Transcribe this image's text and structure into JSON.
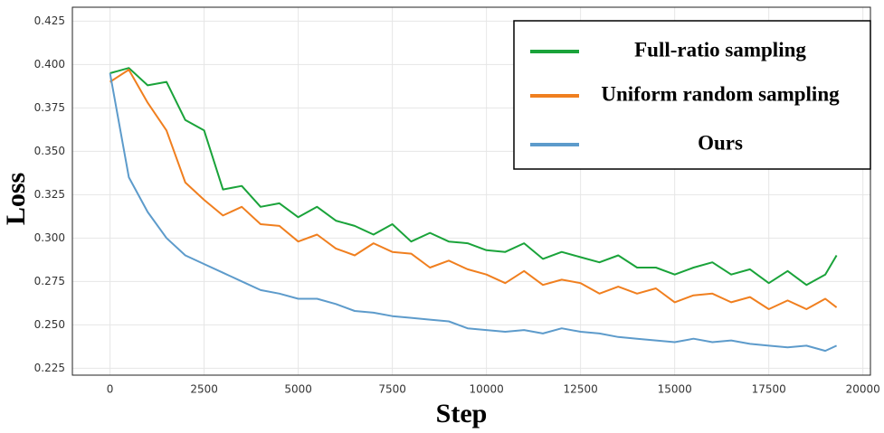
{
  "chart_data": {
    "type": "line",
    "x_label": "Step",
    "y_label": "Loss",
    "x": [
      0,
      500,
      1000,
      1500,
      2000,
      2500,
      3000,
      3500,
      4000,
      4500,
      5000,
      5500,
      6000,
      6500,
      7000,
      7500,
      8000,
      8500,
      9000,
      9500,
      10000,
      10500,
      11000,
      11500,
      12000,
      12500,
      13000,
      13500,
      14000,
      14500,
      15000,
      15500,
      16000,
      16500,
      17000,
      17500,
      18000,
      18500,
      19000,
      19300
    ],
    "series": [
      {
        "name": "Full-ratio sampling",
        "color": "#1aa33a",
        "values": [
          0.395,
          0.398,
          0.388,
          0.39,
          0.368,
          0.362,
          0.328,
          0.33,
          0.318,
          0.32,
          0.312,
          0.318,
          0.31,
          0.307,
          0.302,
          0.308,
          0.298,
          0.303,
          0.298,
          0.297,
          0.293,
          0.292,
          0.297,
          0.288,
          0.292,
          0.289,
          0.286,
          0.29,
          0.283,
          0.283,
          0.279,
          0.283,
          0.286,
          0.279,
          0.282,
          0.274,
          0.281,
          0.273,
          0.279,
          0.29
        ]
      },
      {
        "name": "Uniform random sampling",
        "color": "#f07f1f",
        "values": [
          0.39,
          0.397,
          0.378,
          0.362,
          0.332,
          0.322,
          0.313,
          0.318,
          0.308,
          0.307,
          0.298,
          0.302,
          0.294,
          0.29,
          0.297,
          0.292,
          0.291,
          0.283,
          0.287,
          0.282,
          0.279,
          0.274,
          0.281,
          0.273,
          0.276,
          0.274,
          0.268,
          0.272,
          0.268,
          0.271,
          0.263,
          0.267,
          0.268,
          0.263,
          0.266,
          0.259,
          0.264,
          0.259,
          0.265,
          0.26
        ]
      },
      {
        "name": "Ours",
        "color": "#5d9bcb",
        "values": [
          0.395,
          0.335,
          0.315,
          0.3,
          0.29,
          0.285,
          0.28,
          0.275,
          0.27,
          0.268,
          0.265,
          0.265,
          0.262,
          0.258,
          0.257,
          0.255,
          0.254,
          0.253,
          0.252,
          0.248,
          0.247,
          0.246,
          0.247,
          0.245,
          0.248,
          0.246,
          0.245,
          0.243,
          0.242,
          0.241,
          0.24,
          0.242,
          0.24,
          0.241,
          0.239,
          0.238,
          0.237,
          0.238,
          0.235,
          0.238
        ]
      }
    ],
    "xlim": [
      -1000,
      20200
    ],
    "ylim": [
      0.221,
      0.433
    ],
    "xticks": [
      0,
      2500,
      5000,
      7500,
      10000,
      12500,
      15000,
      17500,
      20000
    ],
    "yticks": [
      0.225,
      {
        "value": 0.25,
        "label": "0.250"
      },
      0.275,
      {
        "value": 0.3,
        "label": "0.300"
      },
      0.325,
      {
        "value": 0.35,
        "label": "0.350"
      },
      0.375,
      {
        "value": 0.4,
        "label": "0.400"
      },
      0.425
    ],
    "grid": true,
    "legend": "upper right"
  }
}
